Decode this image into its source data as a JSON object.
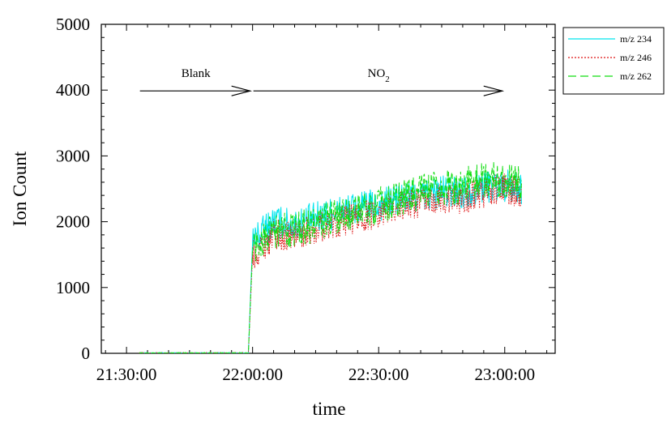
{
  "chart_data": {
    "type": "line",
    "xlabel": "time",
    "ylabel": "Ion Count",
    "xlim": [
      "21:24:00",
      "23:12:00"
    ],
    "ylim": [
      0,
      5000
    ],
    "x_ticks": [
      "21:30:00",
      "22:00:00",
      "22:30:00",
      "23:00:00"
    ],
    "y_ticks": [
      0,
      1000,
      2000,
      3000,
      4000,
      5000
    ],
    "grid": false,
    "legend_position": "outside-top-right",
    "series": [
      {
        "name": "m/z 234",
        "color": "#00e5ee",
        "dash": "solid",
        "points": [
          [
            "21:33:00",
            0
          ],
          [
            "21:59:00",
            0
          ],
          [
            "22:00:00",
            1700
          ],
          [
            "22:05:00",
            2000
          ],
          [
            "22:10:00",
            1950
          ],
          [
            "22:15:00",
            2050
          ],
          [
            "22:20:00",
            2150
          ],
          [
            "22:25:00",
            2200
          ],
          [
            "22:30:00",
            2250
          ],
          [
            "22:35:00",
            2350
          ],
          [
            "22:40:00",
            2400
          ],
          [
            "22:45:00",
            2450
          ],
          [
            "22:50:00",
            2450
          ],
          [
            "22:55:00",
            2550
          ],
          [
            "23:00:00",
            2550
          ],
          [
            "23:04:00",
            2500
          ]
        ],
        "noise": 260
      },
      {
        "name": "m/z 246",
        "color": "#dd1111",
        "dash": "dotted",
        "points": [
          [
            "21:33:00",
            0
          ],
          [
            "21:59:00",
            0
          ],
          [
            "22:00:00",
            1500
          ],
          [
            "22:05:00",
            1800
          ],
          [
            "22:10:00",
            1800
          ],
          [
            "22:15:00",
            1900
          ],
          [
            "22:20:00",
            2000
          ],
          [
            "22:25:00",
            2050
          ],
          [
            "22:30:00",
            2150
          ],
          [
            "22:35:00",
            2250
          ],
          [
            "22:40:00",
            2300
          ],
          [
            "22:45:00",
            2350
          ],
          [
            "22:50:00",
            2350
          ],
          [
            "22:55:00",
            2450
          ],
          [
            "23:00:00",
            2500
          ],
          [
            "23:04:00",
            2450
          ]
        ],
        "noise": 240
      },
      {
        "name": "m/z 262",
        "color": "#11dd11",
        "dash": "dashed",
        "points": [
          [
            "21:33:00",
            0
          ],
          [
            "21:59:00",
            0
          ],
          [
            "22:00:00",
            1600
          ],
          [
            "22:05:00",
            1850
          ],
          [
            "22:10:00",
            1900
          ],
          [
            "22:15:00",
            1950
          ],
          [
            "22:20:00",
            2100
          ],
          [
            "22:25:00",
            2150
          ],
          [
            "22:30:00",
            2250
          ],
          [
            "22:35:00",
            2350
          ],
          [
            "22:40:00",
            2450
          ],
          [
            "22:45:00",
            2500
          ],
          [
            "22:50:00",
            2550
          ],
          [
            "22:55:00",
            2650
          ],
          [
            "23:00:00",
            2650
          ],
          [
            "23:04:00",
            2600
          ]
        ],
        "noise": 280
      }
    ],
    "annotations": [
      {
        "text": "Blank",
        "arrow_from": "21:33:00",
        "arrow_to": "22:00:00",
        "y": 4000
      },
      {
        "text": "NO",
        "subscript": "2",
        "arrow_from": "22:00:00",
        "arrow_to": "23:00:00",
        "y": 4000
      }
    ]
  }
}
